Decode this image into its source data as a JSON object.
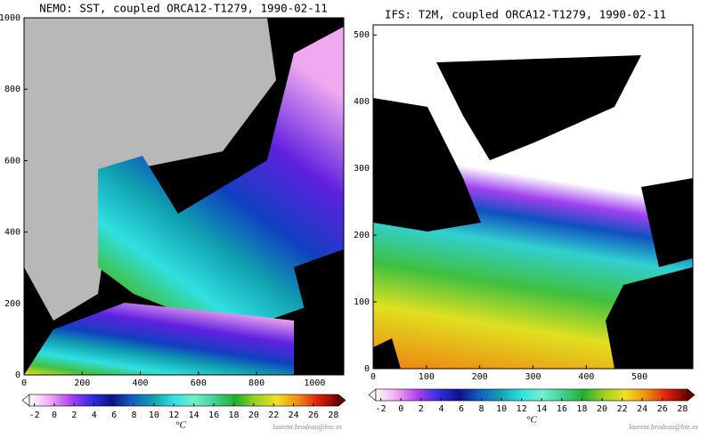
{
  "panels": [
    {
      "title": "NEMO: SST, coupled ORCA12-T1279, 1990-02-11",
      "xlim": [
        0,
        1100
      ],
      "xticks": [
        0,
        200,
        400,
        600,
        800,
        1000
      ],
      "ylim": [
        0,
        1000
      ],
      "yticks": [
        0,
        200,
        400,
        600,
        800,
        1000
      ],
      "colorbar": {
        "lim": [
          -2.5,
          28.5
        ],
        "ticks": [
          -2,
          0,
          2,
          4,
          6,
          8,
          10,
          12,
          14,
          16,
          18,
          20,
          22,
          24,
          26,
          28
        ],
        "unit": "°C"
      },
      "credit": "laurent.brodeau@bsc.es"
    },
    {
      "title": "IFS: T2M, coupled ORCA12-T1279, 1990-02-11",
      "xlim": [
        0,
        600
      ],
      "xticks": [
        0,
        100,
        200,
        300,
        400,
        500
      ],
      "ylim": [
        0,
        515
      ],
      "yticks": [
        0,
        100,
        200,
        300,
        400,
        500
      ],
      "colorbar": {
        "lim": [
          -2.5,
          28.5
        ],
        "ticks": [
          -2,
          0,
          2,
          4,
          6,
          8,
          10,
          12,
          14,
          16,
          18,
          20,
          22,
          24,
          26,
          28
        ],
        "unit": "°C"
      },
      "credit": "laurent.brodeau@bsc.es"
    }
  ],
  "colormap": [
    "#ffffff",
    "#f0a8f0",
    "#b040f0",
    "#3030e0",
    "#10108a",
    "#1060c0",
    "#10a0b0",
    "#30e0e0",
    "#70f0d0",
    "#40d090",
    "#20b030",
    "#a0d020",
    "#f0e020",
    "#f09010",
    "#e02010",
    "#700000"
  ]
}
